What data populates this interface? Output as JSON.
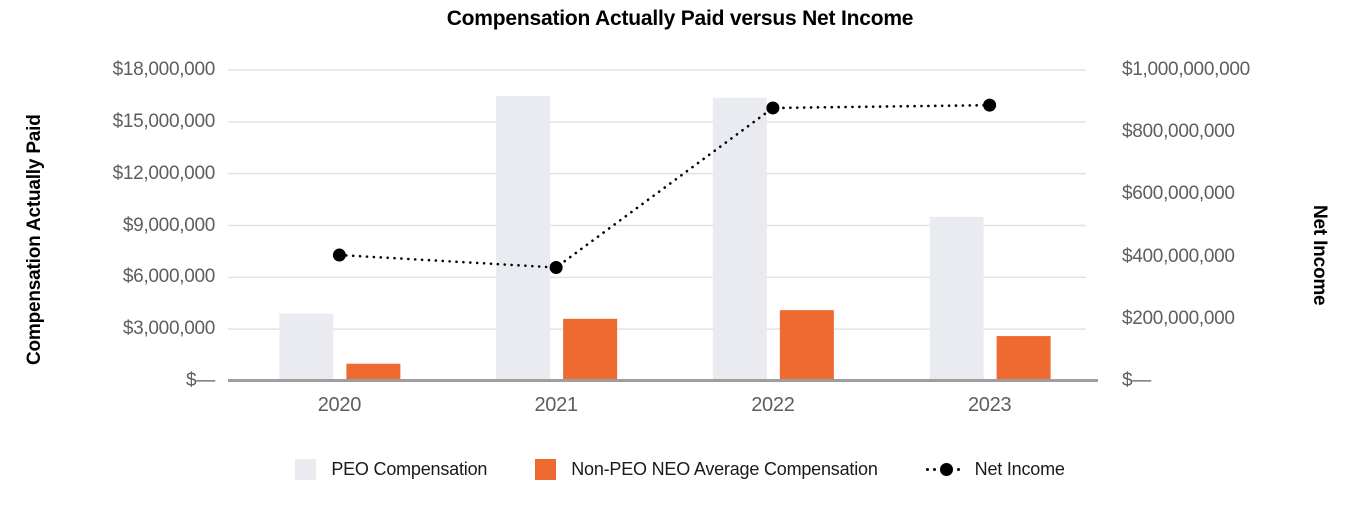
{
  "chart_data": {
    "type": "bar",
    "subtype": "combo-bar-line-dual-axis",
    "title": "Compensation Actually Paid versus Net Income",
    "categories": [
      "2020",
      "2021",
      "2022",
      "2023"
    ],
    "series": [
      {
        "name": "PEO Compensation",
        "type": "bar",
        "axis": "left",
        "color": "#E9EBF0",
        "values": [
          3900000,
          16500000,
          16400000,
          9500000
        ]
      },
      {
        "name": "Non-PEO NEO Average Compensation",
        "type": "bar",
        "axis": "left",
        "color": "#EE6A31",
        "values": [
          1000000,
          3600000,
          4100000,
          2600000
        ]
      },
      {
        "name": "Net Income",
        "type": "line",
        "line_style": "dotted",
        "marker": "circle",
        "axis": "right",
        "color": "#000000",
        "values": [
          405000000,
          365000000,
          878000000,
          887000000
        ]
      }
    ],
    "ylabel_left": "Compensation Actually Paid",
    "ylabel_right": "Net Income",
    "axis_left": {
      "min": 0,
      "max": 18000000,
      "tick_step": 3000000,
      "tick_labels": [
        "$18,000,000",
        "$15,000,000",
        "$12,000,000",
        "$9,000,000",
        "$6,000,000",
        "$3,000,000",
        "$—"
      ]
    },
    "axis_right": {
      "min": 0,
      "max": 1000000000,
      "tick_step": 200000000,
      "tick_labels": [
        "$1,000,000,000",
        "$800,000,000",
        "$600,000,000",
        "$400,000,000",
        "$200,000,000",
        "$—"
      ]
    },
    "grid": true,
    "legend_position": "bottom"
  },
  "colors": {
    "peo_bar": "#E9EBF0",
    "non_peo_bar": "#EE6A31",
    "net_income_line": "#000000",
    "gridline": "#E2E2E2",
    "axis_line": "#9E9E9E",
    "tick_text": "#5E5E5E",
    "legend_text": "#1A1A1A",
    "title_text": "#000000"
  }
}
